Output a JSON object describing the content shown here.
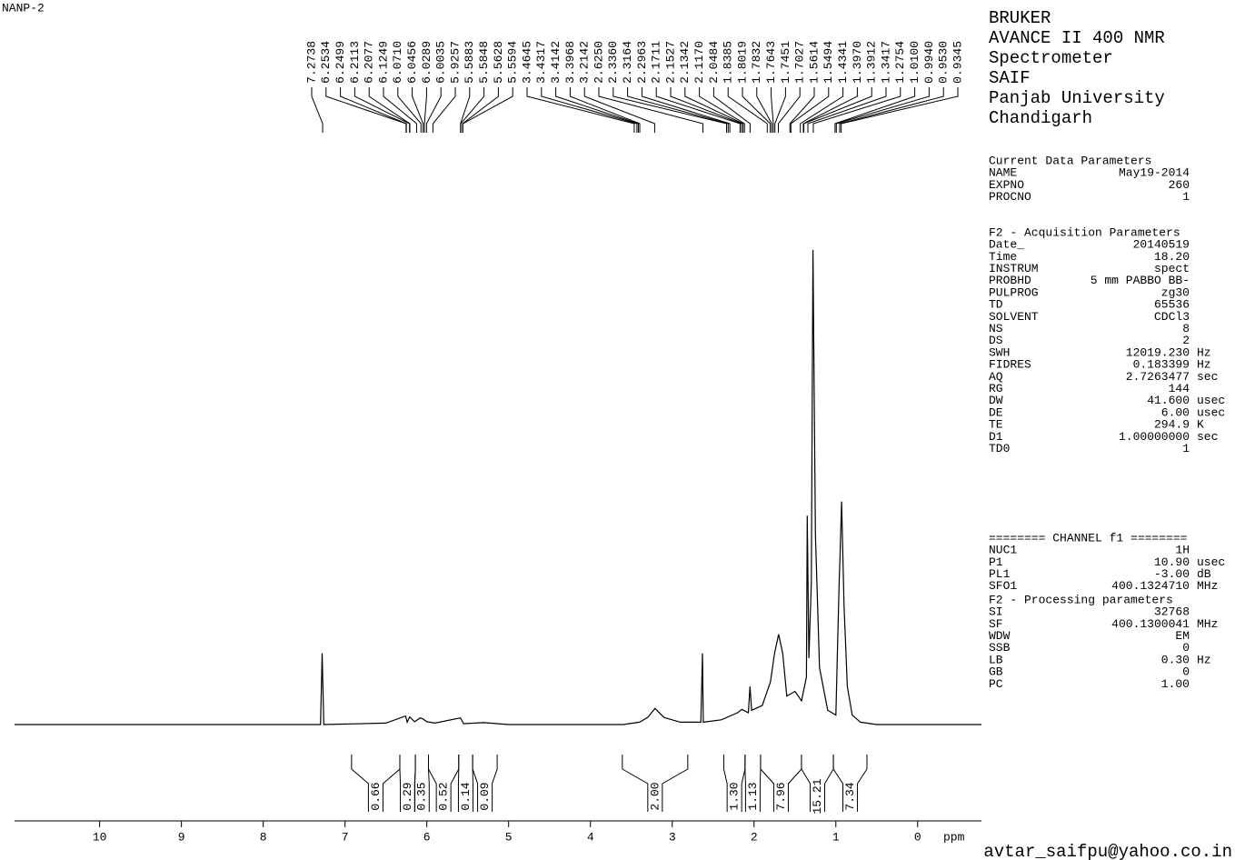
{
  "chart_data": {
    "type": "nmr",
    "title": "NANP-2",
    "x_label": "ppm",
    "xlim": [
      11.04,
      -0.78
    ],
    "xticks": [
      10,
      9,
      8,
      7,
      6,
      5,
      4,
      3,
      2,
      1,
      0
    ],
    "ylim": [
      0,
      100
    ],
    "color": "#000000",
    "x": [
      11.04,
      7.3,
      7.28,
      7.26,
      6.5,
      6.26,
      6.24,
      6.21,
      6.15,
      6.08,
      6.05,
      6.0,
      5.9,
      5.59,
      5.55,
      5.3,
      5.0,
      3.6,
      3.4,
      3.3,
      3.21,
      3.1,
      2.9,
      2.65,
      2.63,
      2.62,
      2.4,
      2.2,
      2.15,
      2.07,
      2.05,
      2.03,
      1.9,
      1.8,
      1.75,
      1.7,
      1.65,
      1.6,
      1.5,
      1.42,
      1.36,
      1.35,
      1.33,
      1.3,
      1.28,
      1.25,
      1.2,
      1.1,
      1.0,
      0.96,
      0.95,
      0.93,
      0.9,
      0.86,
      0.8,
      0.7,
      0.5,
      -0.78
    ],
    "values": [
      0,
      0,
      15,
      0,
      0.3,
      1.8,
      0.5,
      1.6,
      0.6,
      1.4,
      1.2,
      0.6,
      0.3,
      1.4,
      0.2,
      0.4,
      0,
      0,
      0.5,
      1.5,
      3.4,
      1.5,
      0.5,
      0.5,
      15,
      0.5,
      1,
      2.5,
      3.2,
      2.5,
      8,
      3,
      4,
      9,
      15,
      19,
      15,
      6,
      7,
      5,
      10,
      44,
      14,
      30,
      100,
      40,
      12,
      3,
      2,
      30,
      35,
      47,
      25,
      8,
      2,
      0.5,
      0,
      0
    ],
    "peaks": [
      "7.2738",
      "6.2534",
      "6.2499",
      "6.2113",
      "6.2077",
      "6.1249",
      "6.0710",
      "6.0456",
      "6.0289",
      "6.0035",
      "5.9257",
      "5.5883",
      "5.5848",
      "5.5628",
      "5.5594",
      "3.4645",
      "3.4317",
      "3.4142",
      "3.3968",
      "3.2142",
      "2.6250",
      "2.3360",
      "2.3164",
      "2.2963",
      "2.1711",
      "2.1527",
      "2.1342",
      "2.1170",
      "2.0484",
      "1.8385",
      "1.8019",
      "1.7832",
      "1.7643",
      "1.7451",
      "1.7027",
      "1.5614",
      "1.5494",
      "1.4341",
      "1.3970",
      "1.3912",
      "1.3417",
      "1.2754",
      "1.0100",
      "0.9940",
      "0.9530",
      "0.9345"
    ],
    "integrals": [
      {
        "value": "0.66",
        "range": [
          6.92,
          6.33
        ]
      },
      {
        "value": "0.29",
        "range": [
          6.33,
          6.14
        ]
      },
      {
        "value": "0.35",
        "range": [
          6.14,
          5.98
        ]
      },
      {
        "value": "0.52",
        "range": [
          5.98,
          5.61
        ]
      },
      {
        "value": "0.14",
        "range": [
          5.61,
          5.44
        ]
      },
      {
        "value": "0.09",
        "range": [
          5.44,
          5.14
        ]
      },
      {
        "value": "2.00",
        "range": [
          3.61,
          2.81
        ]
      },
      {
        "value": "1.30",
        "range": [
          2.37,
          2.11
        ]
      },
      {
        "value": "1.13",
        "range": [
          2.11,
          1.92
        ]
      },
      {
        "value": "7.96",
        "range": [
          1.92,
          1.42
        ]
      },
      {
        "value": "15.21",
        "range": [
          1.42,
          1.03
        ]
      },
      {
        "value": "7.34",
        "range": [
          1.03,
          0.62
        ]
      }
    ]
  },
  "header_lines": [
    "BRUKER",
    "AVANCE II 400 NMR",
    "Spectrometer",
    "SAIF",
    "Panjab University",
    "Chandigarh"
  ],
  "param_blocks": [
    {
      "title": "Current Data Parameters",
      "rows": [
        [
          "NAME",
          "May19-2014"
        ],
        [
          "EXPNO",
          "260"
        ],
        [
          "PROCNO",
          "1"
        ]
      ]
    },
    {
      "title": "F2 - Acquisition Parameters",
      "rows": [
        [
          "Date_",
          "20140519"
        ],
        [
          "Time",
          "18.20"
        ],
        [
          "INSTRUM",
          "spect"
        ],
        [
          "PROBHD",
          "5 mm PABBO BB-"
        ],
        [
          "PULPROG",
          "zg30"
        ],
        [
          "TD",
          "65536"
        ],
        [
          "SOLVENT",
          "CDCl3"
        ],
        [
          "NS",
          "8"
        ],
        [
          "DS",
          "2"
        ],
        [
          "SWH",
          "12019.230",
          "Hz"
        ],
        [
          "FIDRES",
          "0.183399",
          "Hz"
        ],
        [
          "AQ",
          "2.7263477",
          "sec"
        ],
        [
          "RG",
          "144"
        ],
        [
          "DW",
          "41.600",
          "usec"
        ],
        [
          "DE",
          "6.00",
          "usec"
        ],
        [
          "TE",
          "294.9",
          "K"
        ],
        [
          "D1",
          "1.00000000",
          "sec"
        ],
        [
          "TD0",
          "1"
        ]
      ]
    },
    {
      "title": "======== CHANNEL f1 ========",
      "rows": [
        [
          "NUC1",
          "1H"
        ],
        [
          "P1",
          "10.90",
          "usec"
        ],
        [
          "PL1",
          "-3.00",
          "dB"
        ],
        [
          "SFO1",
          "400.1324710",
          "MHz"
        ]
      ]
    },
    {
      "title": "F2 - Processing parameters",
      "rows": [
        [
          "SI",
          "32768"
        ],
        [
          "SF",
          "400.1300041",
          "MHz"
        ],
        [
          "WDW",
          "EM"
        ],
        [
          "SSB",
          "0"
        ],
        [
          "LB",
          "0.30",
          "Hz"
        ],
        [
          "GB",
          "0"
        ],
        [
          "PC",
          "1.00"
        ]
      ]
    }
  ],
  "footer": "avtar_saifpu@yahoo.co.in"
}
